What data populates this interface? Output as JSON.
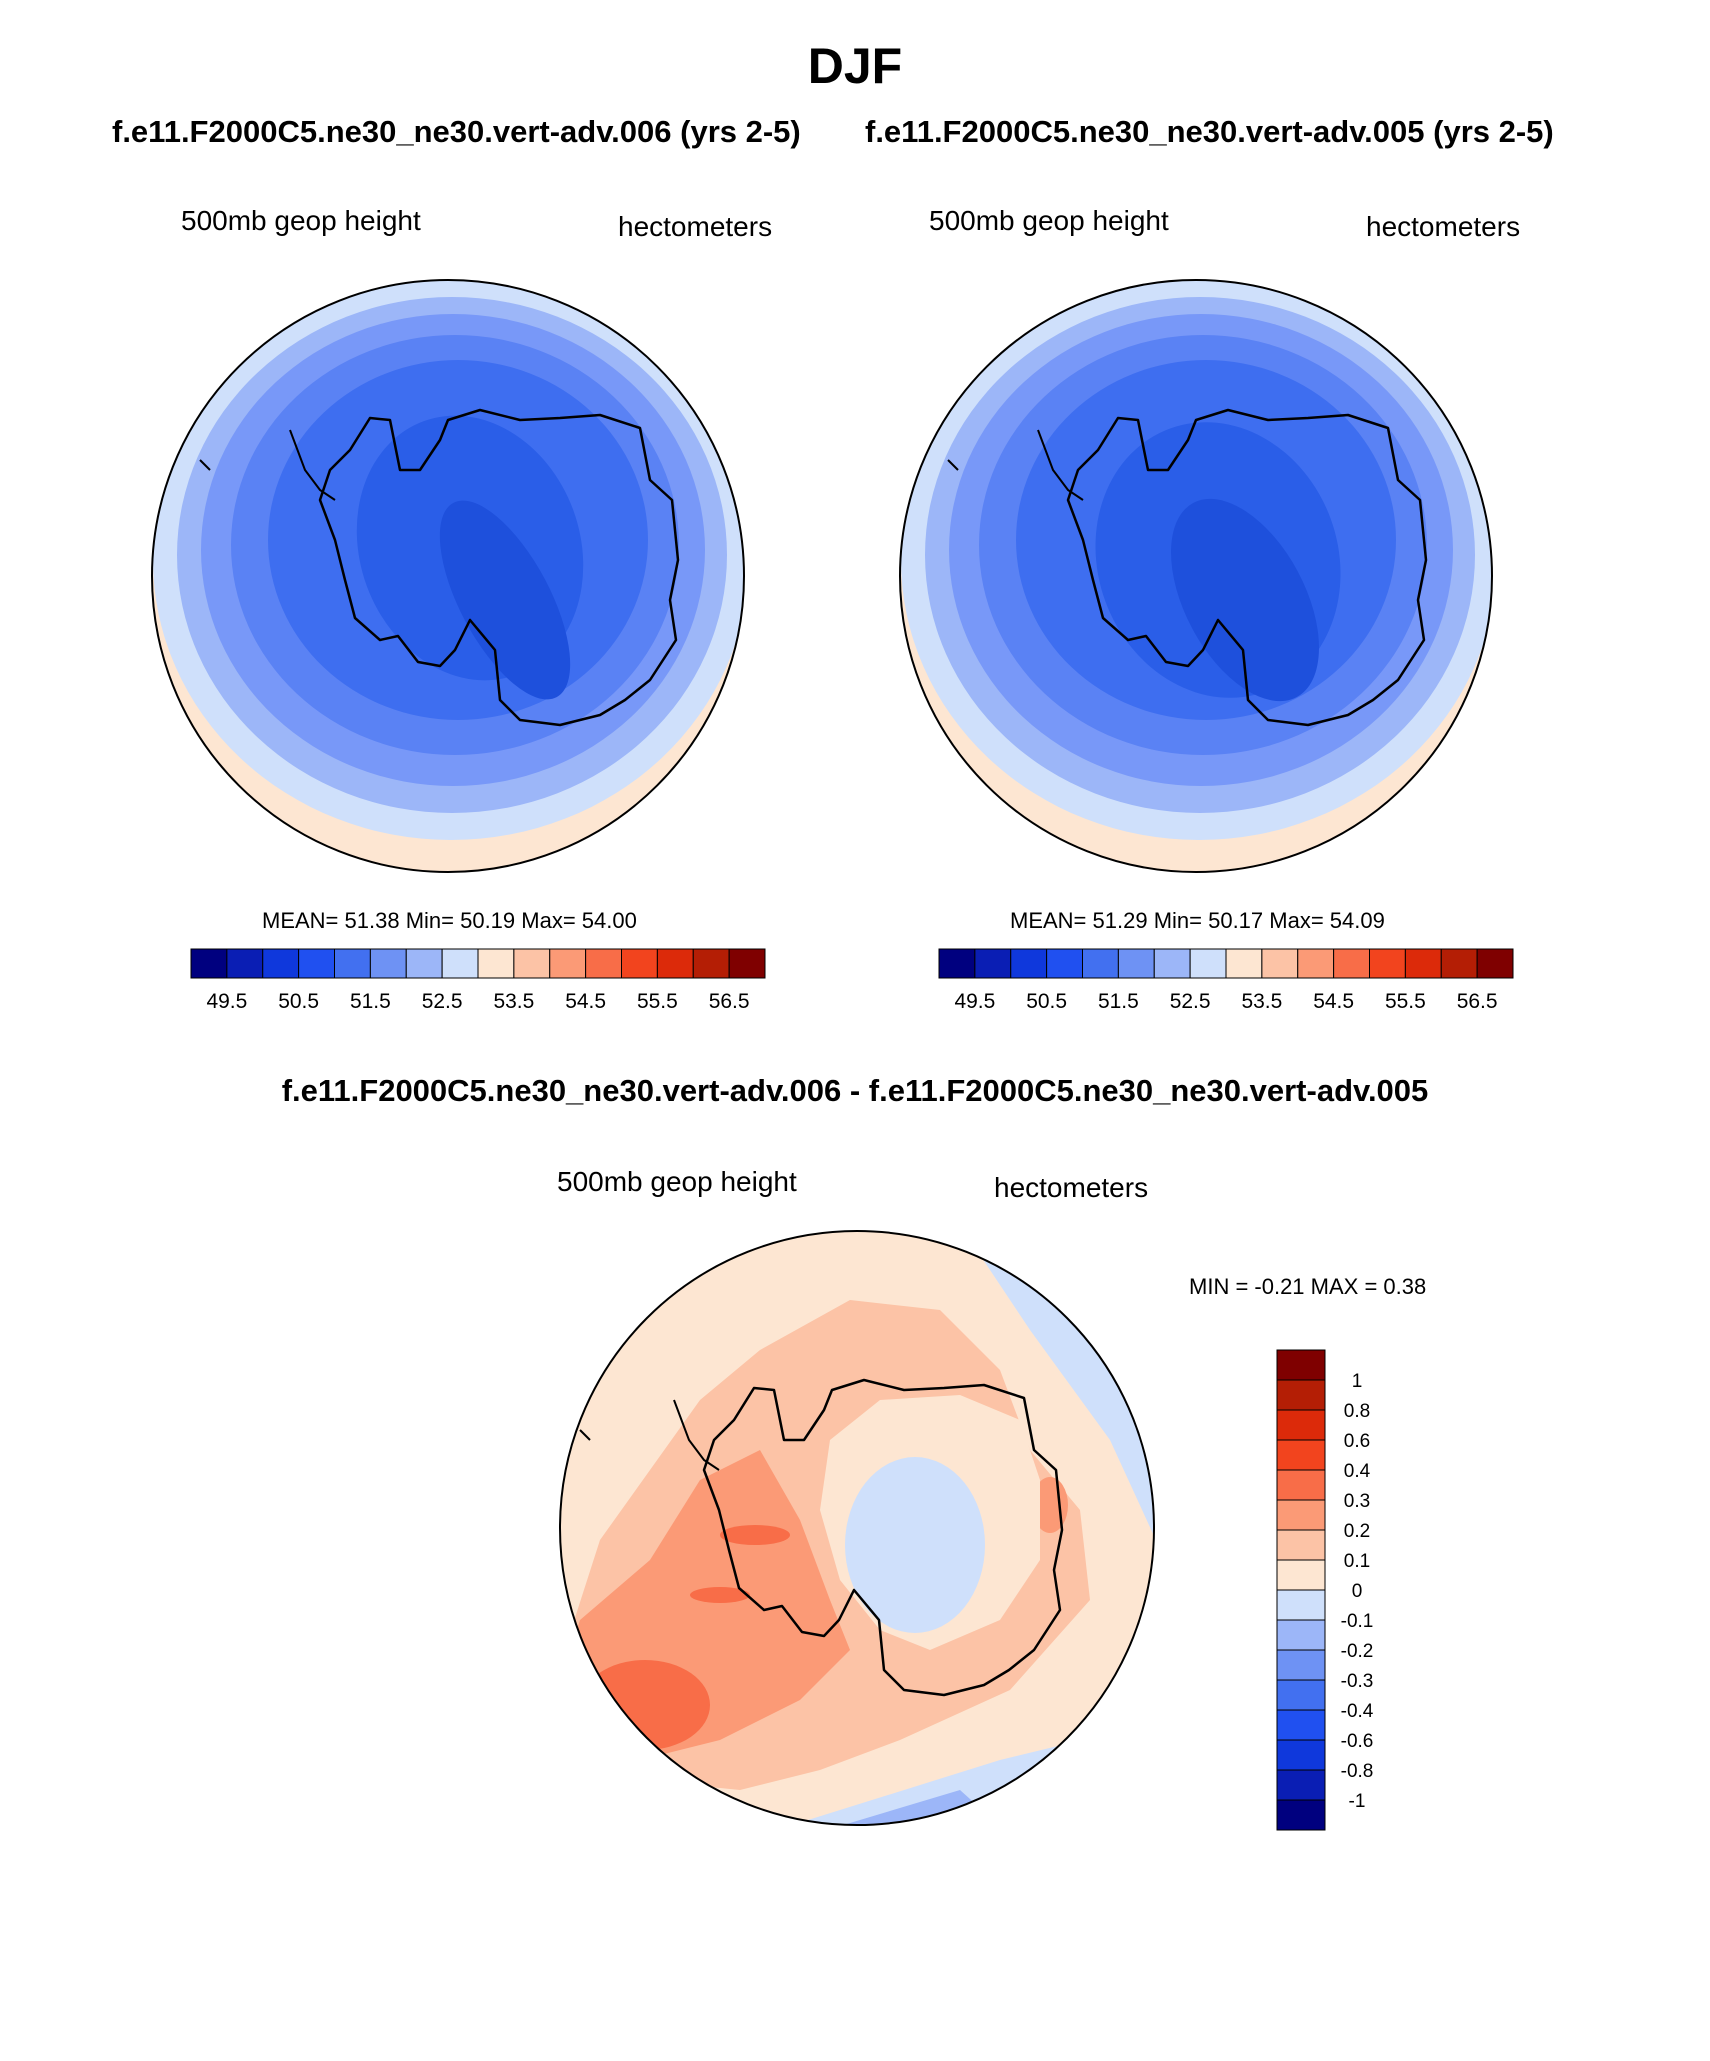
{
  "figure": {
    "title": "DJF",
    "case_a": "f.e11.F2000C5.ne30_ne30.vert-adv.006 (yrs 2-5)",
    "case_b": "f.e11.F2000C5.ne30_ne30.vert-adv.005 (yrs 2-5)",
    "diff_title": "f.e11.F2000C5.ne30_ne30.vert-adv.006 - f.e11.F2000C5.ne30_ne30.vert-adv.005"
  },
  "panels": [
    {
      "variable": "500mb geop height",
      "units": "hectometers",
      "stats": "MEAN=  51.38  Min=  50.19  Max=  54.00",
      "colors": [
        "#7898f8",
        "#5a82f4",
        "#3e6ef0",
        "#2a5ee8",
        "#1e50dc"
      ],
      "colorbar_ticks": [
        "49.5",
        "50.5",
        "51.5",
        "52.5",
        "53.5",
        "54.5",
        "55.5",
        "56.5"
      ]
    },
    {
      "variable": "500mb geop height",
      "units": "hectometers",
      "stats": "MEAN=  51.29  Min=  50.17  Max=  54.09",
      "colors": [
        "#7898f8",
        "#5a82f4",
        "#3e6ef0",
        "#2a5ee8",
        "#1e50dc"
      ],
      "colorbar_ticks": [
        "49.5",
        "50.5",
        "51.5",
        "52.5",
        "53.5",
        "54.5",
        "55.5",
        "56.5"
      ]
    },
    {
      "variable": "500mb geop height",
      "units": "hectometers",
      "stats": "MIN =  -0.21 MAX =   0.38",
      "colorbar_ticks": [
        "1",
        "0.8",
        "0.6",
        "0.4",
        "0.3",
        "0.2",
        "0.1",
        "0",
        "-0.1",
        "-0.2",
        "-0.3",
        "-0.4",
        "-0.6",
        "-0.8",
        "-1"
      ]
    }
  ],
  "colorbar_colors": {
    "horizontal": [
      "#00007f",
      "#0a1eb4",
      "#0f38dc",
      "#2050f0",
      "#4270f0",
      "#6e92f4",
      "#9cb6f8",
      "#cfe0fb",
      "#fde6d2",
      "#fcc3a6",
      "#fb9a76",
      "#f86d48",
      "#f2441e",
      "#dc2a0a",
      "#b41e05",
      "#7f0000"
    ],
    "vertical_top_to_bottom": [
      "#7f0000",
      "#b41e05",
      "#dc2a0a",
      "#f2441e",
      "#f86d48",
      "#fb9a76",
      "#fcc3a6",
      "#fde6d2",
      "#cfe0fb",
      "#9cb6f8",
      "#6e92f4",
      "#4270f0",
      "#2050f0",
      "#0f38dc",
      "#0a1eb4",
      "#00007f"
    ]
  }
}
